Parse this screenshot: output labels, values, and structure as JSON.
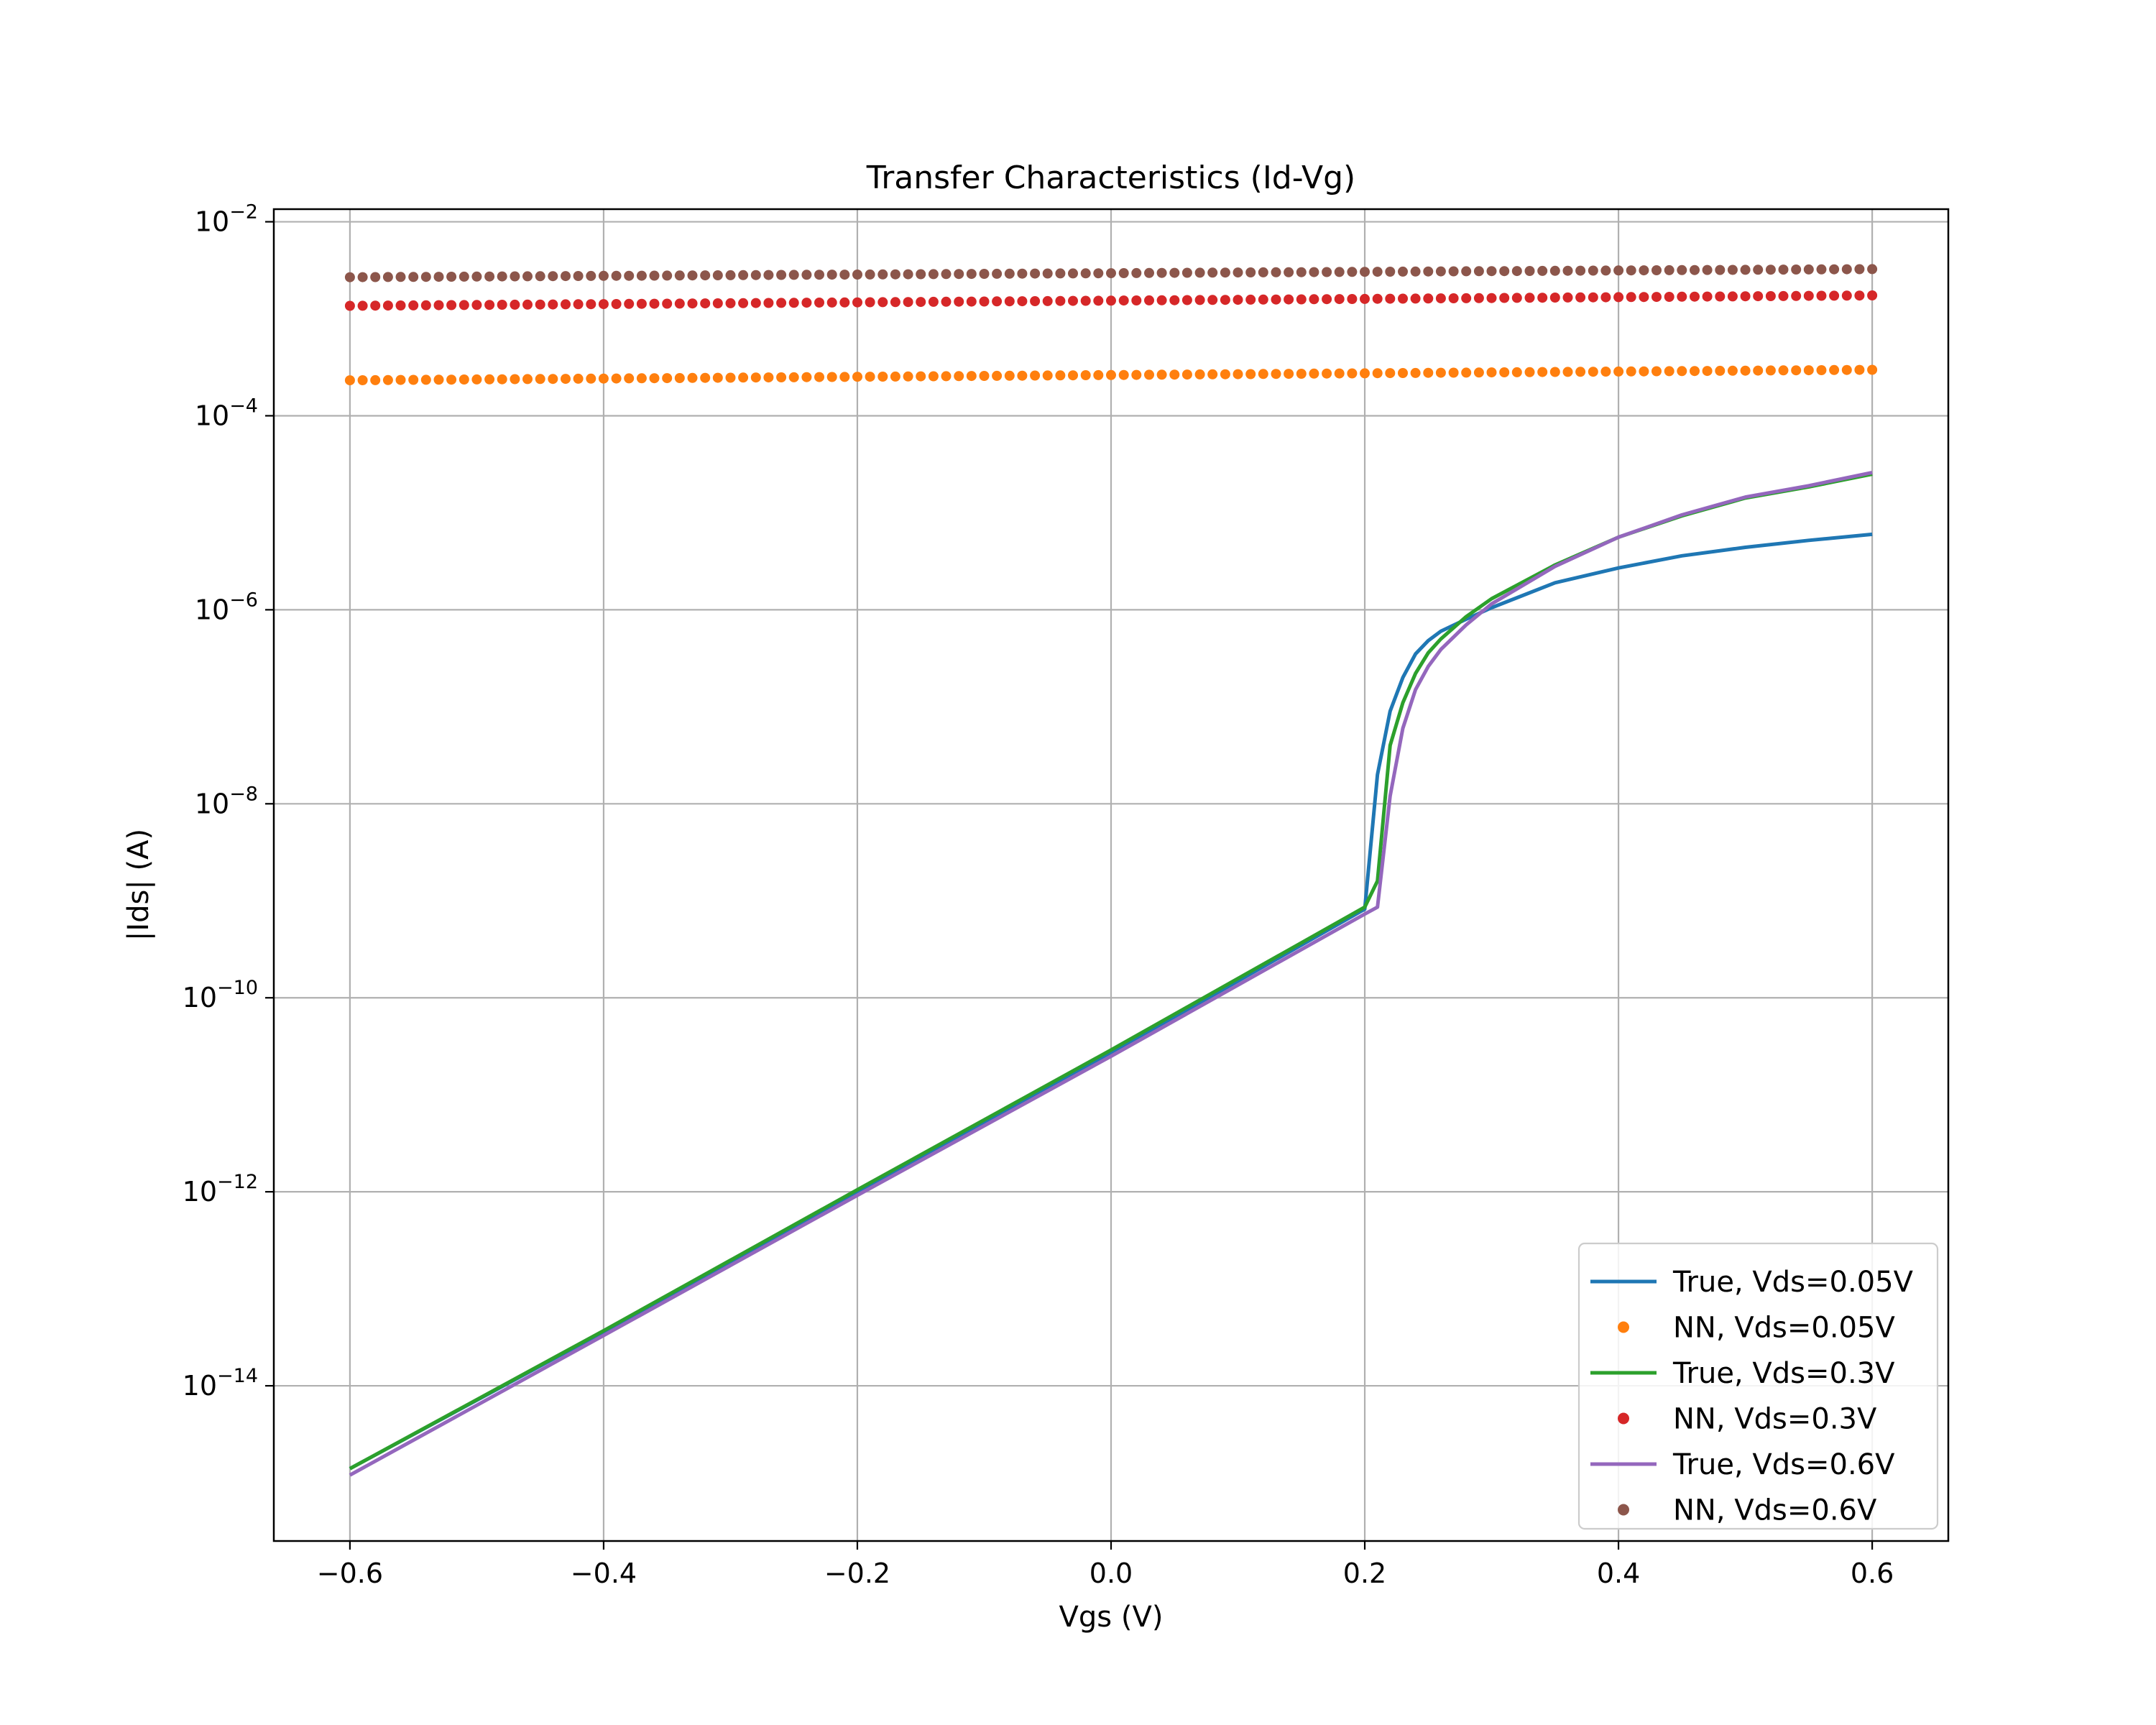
{
  "chart_data": {
    "type": "line",
    "title": "Transfer Characteristics (Id-Vg)",
    "xlabel": "Vgs (V)",
    "ylabel": "|Ids| (A)",
    "xlim": [
      -0.66,
      0.66
    ],
    "ylim_log10": [
      -15.6,
      -1.87
    ],
    "yscale": "log",
    "grid": true,
    "legend_position": "lower-right",
    "x_ticks": [
      {
        "value": -0.6,
        "label": "−0.6"
      },
      {
        "value": -0.4,
        "label": "−0.4"
      },
      {
        "value": -0.2,
        "label": "−0.2"
      },
      {
        "value": 0.0,
        "label": "0.0"
      },
      {
        "value": 0.2,
        "label": "0.2"
      },
      {
        "value": 0.4,
        "label": "0.4"
      },
      {
        "value": 0.6,
        "label": "0.6"
      }
    ],
    "y_ticks": [
      {
        "exp": -2,
        "base": "10",
        "sup": "−2"
      },
      {
        "exp": -4,
        "base": "10",
        "sup": "−4"
      },
      {
        "exp": -6,
        "base": "10",
        "sup": "−6"
      },
      {
        "exp": -8,
        "base": "10",
        "sup": "−8"
      },
      {
        "exp": -10,
        "base": "10",
        "sup": "−10"
      },
      {
        "exp": -12,
        "base": "10",
        "sup": "−12"
      },
      {
        "exp": -14,
        "base": "10",
        "sup": "−14"
      }
    ],
    "series": [
      {
        "name": "True, Vds=0.05V",
        "style": "line",
        "color": "#1f77b4",
        "points": [
          [
            -0.6,
            1.4e-15
          ],
          [
            -0.4,
            3.6e-14
          ],
          [
            -0.2,
            1e-12
          ],
          [
            0.0,
            2.7e-11
          ],
          [
            0.2,
            8.2e-10
          ],
          [
            0.21,
            2e-08
          ],
          [
            0.22,
            9e-08
          ],
          [
            0.23,
            2e-07
          ],
          [
            0.24,
            3.5e-07
          ],
          [
            0.25,
            4.8e-07
          ],
          [
            0.26,
            6e-07
          ],
          [
            0.28,
            8e-07
          ],
          [
            0.3,
            1.05e-06
          ],
          [
            0.35,
            1.9e-06
          ],
          [
            0.4,
            2.7e-06
          ],
          [
            0.45,
            3.6e-06
          ],
          [
            0.5,
            4.4e-06
          ],
          [
            0.55,
            5.2e-06
          ],
          [
            0.6,
            6e-06
          ]
        ]
      },
      {
        "name": "NN, Vds=0.05V",
        "style": "dots",
        "color": "#ff7f0e",
        "x_start": -0.6,
        "x_end": 0.6,
        "count": 121,
        "y_start": 0.000232,
        "y_end": 0.000298
      },
      {
        "name": "True, Vds=0.3V",
        "style": "line",
        "color": "#2ca02c",
        "points": [
          [
            -0.6,
            1.4e-15
          ],
          [
            -0.4,
            3.7e-14
          ],
          [
            -0.2,
            1.05e-12
          ],
          [
            0.0,
            2.9e-11
          ],
          [
            0.2,
            8.6e-10
          ],
          [
            0.21,
            1.6e-09
          ],
          [
            0.22,
            4e-08
          ],
          [
            0.23,
            1.1e-07
          ],
          [
            0.24,
            2.2e-07
          ],
          [
            0.25,
            3.6e-07
          ],
          [
            0.26,
            5e-07
          ],
          [
            0.28,
            8.5e-07
          ],
          [
            0.3,
            1.3e-06
          ],
          [
            0.35,
            2.9e-06
          ],
          [
            0.4,
            5.6e-06
          ],
          [
            0.45,
            9.3e-06
          ],
          [
            0.5,
            1.42e-05
          ],
          [
            0.55,
            1.85e-05
          ],
          [
            0.6,
            2.5e-05
          ]
        ]
      },
      {
        "name": "NN, Vds=0.3V",
        "style": "dots",
        "color": "#d62728",
        "x_start": -0.6,
        "x_end": 0.6,
        "count": 121,
        "y_start": 0.00136,
        "y_end": 0.00174
      },
      {
        "name": "True, Vds=0.6V",
        "style": "line",
        "color": "#9467bd",
        "points": [
          [
            -0.6,
            1.2e-15
          ],
          [
            -0.4,
            3.3e-14
          ],
          [
            -0.2,
            9.2e-13
          ],
          [
            0.0,
            2.5e-11
          ],
          [
            0.2,
            7.3e-10
          ],
          [
            0.21,
            8.6e-10
          ],
          [
            0.22,
            1.2e-08
          ],
          [
            0.23,
            6e-08
          ],
          [
            0.24,
            1.5e-07
          ],
          [
            0.25,
            2.6e-07
          ],
          [
            0.26,
            3.9e-07
          ],
          [
            0.28,
            7e-07
          ],
          [
            0.3,
            1.15e-06
          ],
          [
            0.35,
            2.8e-06
          ],
          [
            0.4,
            5.6e-06
          ],
          [
            0.45,
            9.5e-06
          ],
          [
            0.5,
            1.45e-05
          ],
          [
            0.55,
            1.9e-05
          ],
          [
            0.6,
            2.6e-05
          ]
        ]
      },
      {
        "name": "NN, Vds=0.6V",
        "style": "dots",
        "color": "#8c564b",
        "x_start": -0.6,
        "x_end": 0.6,
        "count": 121,
        "y_start": 0.00268,
        "y_end": 0.00325
      }
    ]
  }
}
